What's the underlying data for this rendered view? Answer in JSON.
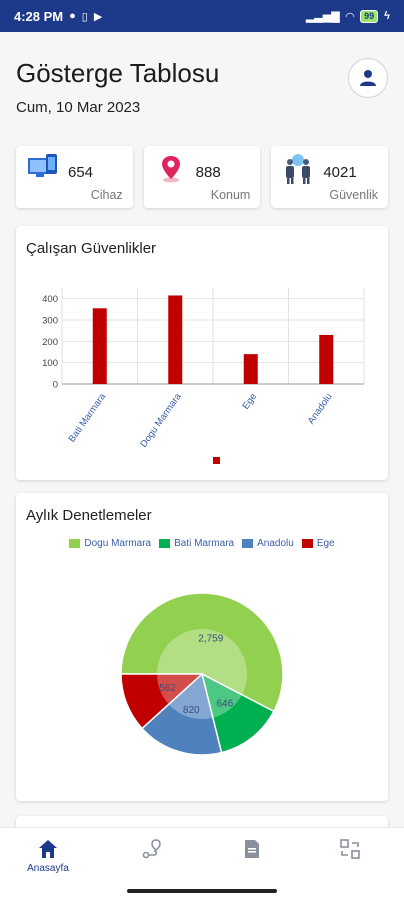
{
  "status_bar": {
    "time": "4:28 PM",
    "battery": "99"
  },
  "header": {
    "title": "Gösterge Tablosu",
    "date": "Cum, 10 Mar 2023"
  },
  "stats": [
    {
      "value": "654",
      "label": "Cihaz",
      "icon": "devices-icon"
    },
    {
      "value": "888",
      "label": "Konum",
      "icon": "location-pin-icon"
    },
    {
      "value": "4021",
      "label": "Güvenlik",
      "icon": "security-staff-icon"
    }
  ],
  "bar_card": {
    "title": "Çalışan Güvenlikler"
  },
  "pie_card": {
    "title": "Aylık Denetlemeler"
  },
  "chart_data": [
    {
      "type": "bar",
      "title": "Çalışan Güvenlikler",
      "categories": [
        "Bati Marmara",
        "Dogu Marmara",
        "Ege",
        "Anadolu"
      ],
      "values": [
        355,
        415,
        140,
        230
      ],
      "ylim": [
        0,
        450
      ],
      "yticks": [
        0,
        100,
        200,
        300,
        400
      ],
      "grid": true,
      "color": "#c00000"
    },
    {
      "type": "pie",
      "title": "Aylık Denetlemeler",
      "legend_position": "top",
      "slices": [
        {
          "name": "Dogu Marmara",
          "value": 2759,
          "label": "2,759",
          "color": "#92d050"
        },
        {
          "name": "Bati Marmara",
          "value": 646,
          "label": "646",
          "color": "#00b050"
        },
        {
          "name": "Anadolu",
          "value": 820,
          "label": "820",
          "color": "#4f81bd"
        },
        {
          "name": "Ege",
          "value": 562,
          "label": "562",
          "color": "#c00000"
        }
      ]
    }
  ],
  "nav": [
    {
      "label": "Anasayfa",
      "icon": "home-icon",
      "active": true
    },
    {
      "label": "",
      "icon": "route-icon",
      "active": false
    },
    {
      "label": "",
      "icon": "document-icon",
      "active": false
    },
    {
      "label": "",
      "icon": "transfer-icon",
      "active": false
    }
  ]
}
